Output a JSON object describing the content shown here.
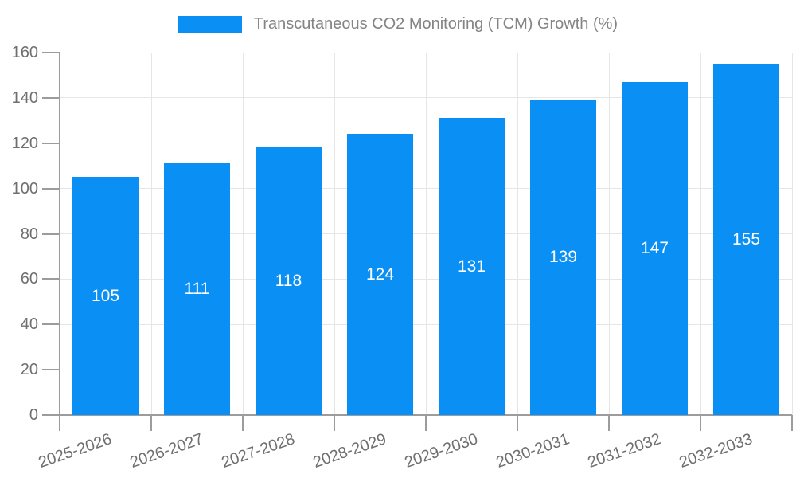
{
  "legend": {
    "items": [
      {
        "label": "Transcutaneous CO2 Monitoring (TCM) Growth (%)",
        "color": "#0a90f4"
      }
    ]
  },
  "chart_data": {
    "type": "bar",
    "title": "",
    "xlabel": "",
    "ylabel": "",
    "categories": [
      "2025-2026",
      "2026-2027",
      "2027-2028",
      "2028-2029",
      "2029-2030",
      "2030-2031",
      "2031-2032",
      "2032-2033"
    ],
    "series": [
      {
        "name": "Transcutaneous CO2 Monitoring (TCM) Growth (%)",
        "values": [
          105,
          111,
          118,
          124,
          131,
          139,
          147,
          155
        ]
      }
    ],
    "value_labels": [
      105,
      111,
      118,
      124,
      131,
      139,
      147,
      155
    ],
    "ylim": [
      0,
      160
    ],
    "ytick_step": 20,
    "yticks": [
      0,
      20,
      40,
      60,
      80,
      100,
      120,
      140,
      160
    ],
    "grid": true,
    "legend_position": "top-center",
    "x_label_rotation_deg": -19,
    "value_label_position": "inside-center"
  },
  "colors": {
    "background": "#ffffff",
    "bar": "#0a90f4",
    "grid_line": "#e6e6e6",
    "axis_line": "#9c9c9c",
    "axis_label": "#6f6f6f",
    "legend_text": "#848484",
    "value_label": "#ffffff"
  }
}
